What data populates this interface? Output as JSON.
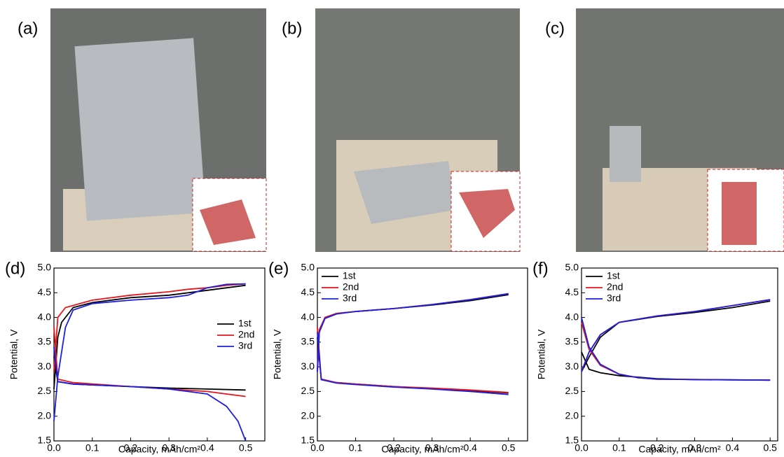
{
  "panel_labels": [
    "(a)",
    "(b)",
    "(c)"
  ],
  "chart_data": [
    {
      "type": "line",
      "title": "(d)",
      "x_label": "Capacity, mAh/cm²",
      "y_label": "Potential, V",
      "xlim": [
        0,
        0.55
      ],
      "ylim": [
        1.5,
        5.0
      ],
      "xticks": [
        {
          "value": 0,
          "label": "0.0"
        },
        0.1,
        0.2,
        0.3,
        0.4,
        0.5
      ],
      "yticks": [
        1.5,
        {
          "value": 2,
          "label": "2.0"
        },
        2.5,
        {
          "value": 3,
          "label": "3.0"
        },
        3.5,
        {
          "value": 4,
          "label": "4.0"
        },
        4.5,
        {
          "value": 5,
          "label": "5.0"
        }
      ],
      "legend": "right",
      "series": [
        {
          "name": "1st",
          "color": "#000000",
          "x": [
            0,
            0.01,
            0.02,
            0.05,
            0.1,
            0.2,
            0.3,
            0.4,
            0.5,
            null,
            0,
            0.01,
            0.05,
            0.2,
            0.3,
            0.4,
            0.5
          ],
          "values": [
            2.55,
            3.6,
            3.9,
            4.2,
            4.3,
            4.4,
            4.45,
            4.55,
            4.65,
            null,
            3.2,
            2.7,
            2.65,
            2.6,
            2.57,
            2.55,
            2.53
          ]
        },
        {
          "name": "2nd",
          "color": "#e8151b",
          "x": [
            0,
            0.01,
            0.03,
            0.1,
            0.2,
            0.3,
            0.35,
            0.4,
            0.45,
            0.5,
            null,
            0,
            0.01,
            0.05,
            0.2,
            0.3,
            0.4,
            0.45,
            0.5
          ],
          "values": [
            2.9,
            4.0,
            4.2,
            4.35,
            4.45,
            4.52,
            4.57,
            4.6,
            4.65,
            4.68,
            null,
            3.8,
            2.75,
            2.68,
            2.6,
            2.55,
            2.5,
            2.45,
            2.4
          ]
        },
        {
          "name": "3rd",
          "color": "#1f1fe0",
          "x": [
            0,
            0.01,
            0.03,
            0.05,
            0.1,
            0.2,
            0.3,
            0.35,
            0.4,
            0.45,
            0.5,
            null,
            0,
            0.01,
            0.05,
            0.2,
            0.3,
            0.35,
            0.4,
            0.45,
            0.48,
            0.5
          ],
          "values": [
            1.9,
            2.8,
            3.8,
            4.15,
            4.28,
            4.35,
            4.4,
            4.45,
            4.6,
            4.67,
            4.68,
            null,
            3.4,
            2.7,
            2.65,
            2.6,
            2.55,
            2.5,
            2.45,
            2.2,
            1.9,
            1.5
          ]
        }
      ]
    },
    {
      "type": "line",
      "title": "(e)",
      "x_label": "Capacity, mAh/cm²",
      "y_label": "Potential, V",
      "xlim": [
        0,
        0.55
      ],
      "ylim": [
        1.5,
        5.0
      ],
      "xticks": [
        {
          "value": 0,
          "label": "0.0"
        },
        0.1,
        0.2,
        0.3,
        0.4,
        0.5
      ],
      "yticks": [
        1.5,
        {
          "value": 2,
          "label": "2.0"
        },
        2.5,
        {
          "value": 3,
          "label": "3.0"
        },
        3.5,
        {
          "value": 4,
          "label": "4.0"
        },
        4.5,
        {
          "value": 5,
          "label": "5.0"
        }
      ],
      "legend": "upper left",
      "series": [
        {
          "name": "1st",
          "color": "#000000",
          "x": [
            0,
            0.005,
            0.02,
            0.05,
            0.1,
            0.2,
            0.3,
            0.4,
            0.5,
            null,
            0,
            0.01,
            0.05,
            0.1,
            0.2,
            0.3,
            0.4,
            0.5
          ],
          "values": [
            2.9,
            3.7,
            4.0,
            4.08,
            4.12,
            4.18,
            4.25,
            4.34,
            4.46,
            null,
            3.6,
            2.75,
            2.68,
            2.65,
            2.6,
            2.56,
            2.52,
            2.47
          ]
        },
        {
          "name": "2nd",
          "color": "#e8151b",
          "x": [
            0,
            0.005,
            0.02,
            0.05,
            0.1,
            0.2,
            0.3,
            0.4,
            0.5,
            null,
            0,
            0.01,
            0.05,
            0.1,
            0.2,
            0.3,
            0.4,
            0.5
          ],
          "values": [
            2.95,
            3.75,
            4.0,
            4.08,
            4.12,
            4.18,
            4.26,
            4.36,
            4.48,
            null,
            3.8,
            2.75,
            2.68,
            2.65,
            2.6,
            2.57,
            2.53,
            2.48
          ]
        },
        {
          "name": "3rd",
          "color": "#1f1fe0",
          "x": [
            0,
            0.005,
            0.02,
            0.05,
            0.1,
            0.2,
            0.3,
            0.4,
            0.5,
            null,
            0,
            0.01,
            0.05,
            0.1,
            0.2,
            0.3,
            0.4,
            0.5
          ],
          "values": [
            2.9,
            3.7,
            3.98,
            4.07,
            4.12,
            4.18,
            4.26,
            4.36,
            4.48,
            null,
            3.7,
            2.74,
            2.67,
            2.64,
            2.59,
            2.55,
            2.5,
            2.44
          ]
        }
      ]
    },
    {
      "type": "line",
      "title": "(f)",
      "x_label": "Capacity, mAh/cm²",
      "y_label": "Potential, V",
      "xlim": [
        0,
        0.52
      ],
      "ylim": [
        1.5,
        5.0
      ],
      "xticks": [
        {
          "value": 0,
          "label": "0.0"
        },
        0.1,
        0.2,
        0.3,
        0.4,
        0.5
      ],
      "yticks": [
        1.5,
        {
          "value": 2,
          "label": "2.0"
        },
        2.5,
        {
          "value": 3,
          "label": "3.0"
        },
        3.5,
        {
          "value": 4,
          "label": "4.0"
        },
        4.5,
        {
          "value": 5,
          "label": "5.0"
        }
      ],
      "legend": "upper left",
      "series": [
        {
          "name": "1st",
          "color": "#000000",
          "x": [
            0,
            0.02,
            0.05,
            0.1,
            0.2,
            0.3,
            0.4,
            0.5,
            null,
            0,
            0.02,
            0.05,
            0.1,
            0.2,
            0.3,
            0.5
          ],
          "values": [
            2.9,
            3.2,
            3.6,
            3.9,
            4.02,
            4.1,
            4.2,
            4.33,
            null,
            3.3,
            2.95,
            2.88,
            2.82,
            2.76,
            2.74,
            2.73
          ]
        },
        {
          "name": "2nd",
          "color": "#e8151b",
          "x": [
            0,
            0.02,
            0.05,
            0.1,
            0.2,
            0.3,
            0.4,
            0.5,
            null,
            0,
            0.02,
            0.05,
            0.1,
            0.15,
            0.2,
            0.5
          ],
          "values": [
            2.9,
            3.3,
            3.65,
            3.9,
            4.03,
            4.12,
            4.24,
            4.36,
            null,
            3.9,
            3.35,
            3.03,
            2.85,
            2.78,
            2.75,
            2.73
          ]
        },
        {
          "name": "3rd",
          "color": "#1f1fe0",
          "x": [
            0,
            0.02,
            0.05,
            0.1,
            0.2,
            0.3,
            0.4,
            0.5,
            null,
            0,
            0.02,
            0.05,
            0.1,
            0.15,
            0.2,
            0.5
          ],
          "values": [
            2.9,
            3.3,
            3.65,
            3.9,
            4.03,
            4.12,
            4.24,
            4.36,
            null,
            4.0,
            3.4,
            3.05,
            2.85,
            2.78,
            2.75,
            2.73
          ]
        }
      ]
    }
  ]
}
